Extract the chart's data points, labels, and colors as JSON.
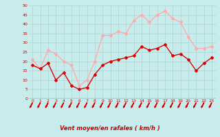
{
  "x": [
    0,
    1,
    2,
    3,
    4,
    5,
    6,
    7,
    8,
    9,
    10,
    11,
    12,
    13,
    14,
    15,
    16,
    17,
    18,
    19,
    20,
    21,
    22,
    23
  ],
  "wind_avg": [
    18,
    16,
    19,
    10,
    14,
    7,
    5,
    6,
    13,
    18,
    20,
    21,
    22,
    23,
    28,
    26,
    27,
    29,
    23,
    24,
    21,
    15,
    19,
    22
  ],
  "wind_gust": [
    21,
    16,
    26,
    24,
    20,
    18,
    7,
    10,
    20,
    34,
    34,
    36,
    35,
    42,
    45,
    41,
    45,
    47,
    43,
    41,
    33,
    27,
    27,
    28
  ],
  "avg_color": "#dd0000",
  "gust_color": "#ffaaaa",
  "bg_color": "#c8ecec",
  "grid_color": "#aad4d4",
  "xlabel": "Vent moyen/en rafales ( km/h )",
  "xlabel_color": "#cc0000",
  "tick_color": "#cc0000",
  "arrow_color": "#cc0000",
  "ylim": [
    0,
    50
  ],
  "yticks": [
    0,
    5,
    10,
    15,
    20,
    25,
    30,
    35,
    40,
    45,
    50
  ],
  "xticks": [
    0,
    1,
    2,
    3,
    4,
    5,
    6,
    7,
    8,
    9,
    10,
    11,
    12,
    13,
    14,
    15,
    16,
    17,
    18,
    19,
    20,
    21,
    22,
    23
  ]
}
